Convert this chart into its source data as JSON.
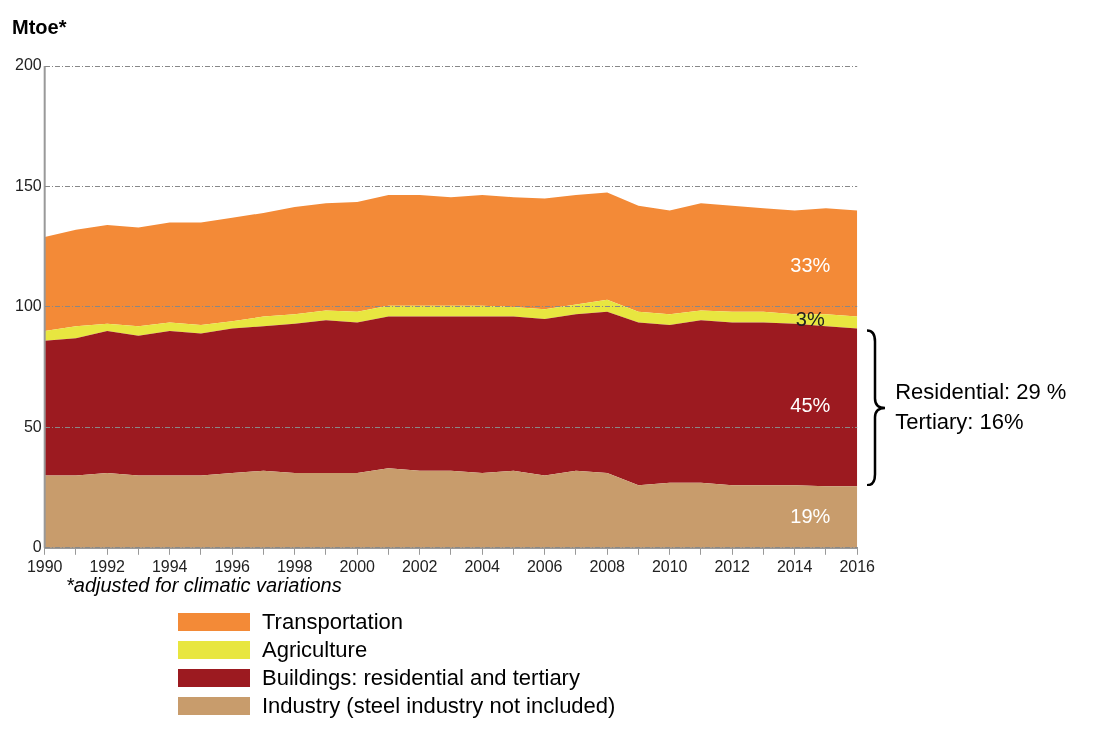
{
  "chart_data": {
    "type": "area",
    "ylabel": "Mtoe*",
    "stacked": true,
    "x": [
      1990,
      1991,
      1992,
      1993,
      1994,
      1995,
      1996,
      1997,
      1998,
      1999,
      2000,
      2001,
      2002,
      2003,
      2004,
      2005,
      2006,
      2007,
      2008,
      2009,
      2010,
      2011,
      2012,
      2013,
      2014,
      2015,
      2016
    ],
    "series": [
      {
        "name": "Industry (steel industry not included)",
        "color": "#c89c6c",
        "values": [
          30,
          30,
          31,
          30,
          30,
          30,
          31,
          32,
          31,
          31,
          31,
          33,
          32,
          32,
          31,
          32,
          30,
          32,
          31,
          26,
          27,
          27,
          26,
          26,
          26,
          25.5,
          25.5
        ]
      },
      {
        "name": "Buildings: residential and tertiary",
        "color": "#9c1a20",
        "values": [
          56,
          57,
          59,
          58,
          60,
          59,
          60,
          60,
          62,
          63.5,
          62.5,
          63,
          64,
          64,
          65,
          64,
          65,
          65,
          67,
          67.5,
          65.5,
          67.5,
          67.5,
          67.5,
          67,
          66.5,
          65.5
        ]
      },
      {
        "name": "Agriculture",
        "color": "#e8e640",
        "values": [
          4,
          5,
          3,
          4,
          3.5,
          3.5,
          3,
          4,
          4,
          4,
          4.5,
          4.5,
          4.5,
          4.5,
          4.5,
          4,
          4,
          4,
          5,
          4.5,
          4.5,
          4,
          4.5,
          4.5,
          4,
          5,
          5
        ]
      },
      {
        "name": "Transportation",
        "color": "#f38a37",
        "values": [
          39,
          40,
          41,
          41,
          41.5,
          42.5,
          43,
          43,
          44.5,
          44.5,
          45.5,
          46,
          46,
          45,
          46,
          45.5,
          46,
          45.5,
          44.5,
          44,
          43,
          44.5,
          44,
          43,
          43,
          44,
          44
        ]
      }
    ],
    "xlim": [
      1990,
      2016
    ],
    "xticks": [
      1990,
      {
        "value": 1991,
        "label": null
      },
      1992,
      {
        "value": 1993,
        "label": null
      },
      1994,
      {
        "value": 1995,
        "label": null
      },
      1996,
      {
        "value": 1997,
        "label": null
      },
      1998,
      {
        "value": 1999,
        "label": null
      },
      2000,
      {
        "value": 2001,
        "label": null
      },
      2002,
      {
        "value": 2003,
        "label": null
      },
      2004,
      {
        "value": 2005,
        "label": null
      },
      2006,
      {
        "value": 2007,
        "label": null
      },
      2008,
      {
        "value": 2009,
        "label": null
      },
      2010,
      {
        "value": 2011,
        "label": null
      },
      2012,
      {
        "value": 2013,
        "label": null
      },
      2014,
      {
        "value": 2015,
        "label": null
      },
      2016
    ],
    "ylim": [
      0,
      200
    ],
    "yticks": [
      0,
      50,
      100,
      150,
      200
    ],
    "grid": "y",
    "legend": "bottom",
    "annotations": [
      "33%",
      "3%",
      "45%",
      "19%",
      "Residential: 29 %",
      "Tertiary: 16%",
      "*adjusted for climatic variations"
    ]
  }
}
